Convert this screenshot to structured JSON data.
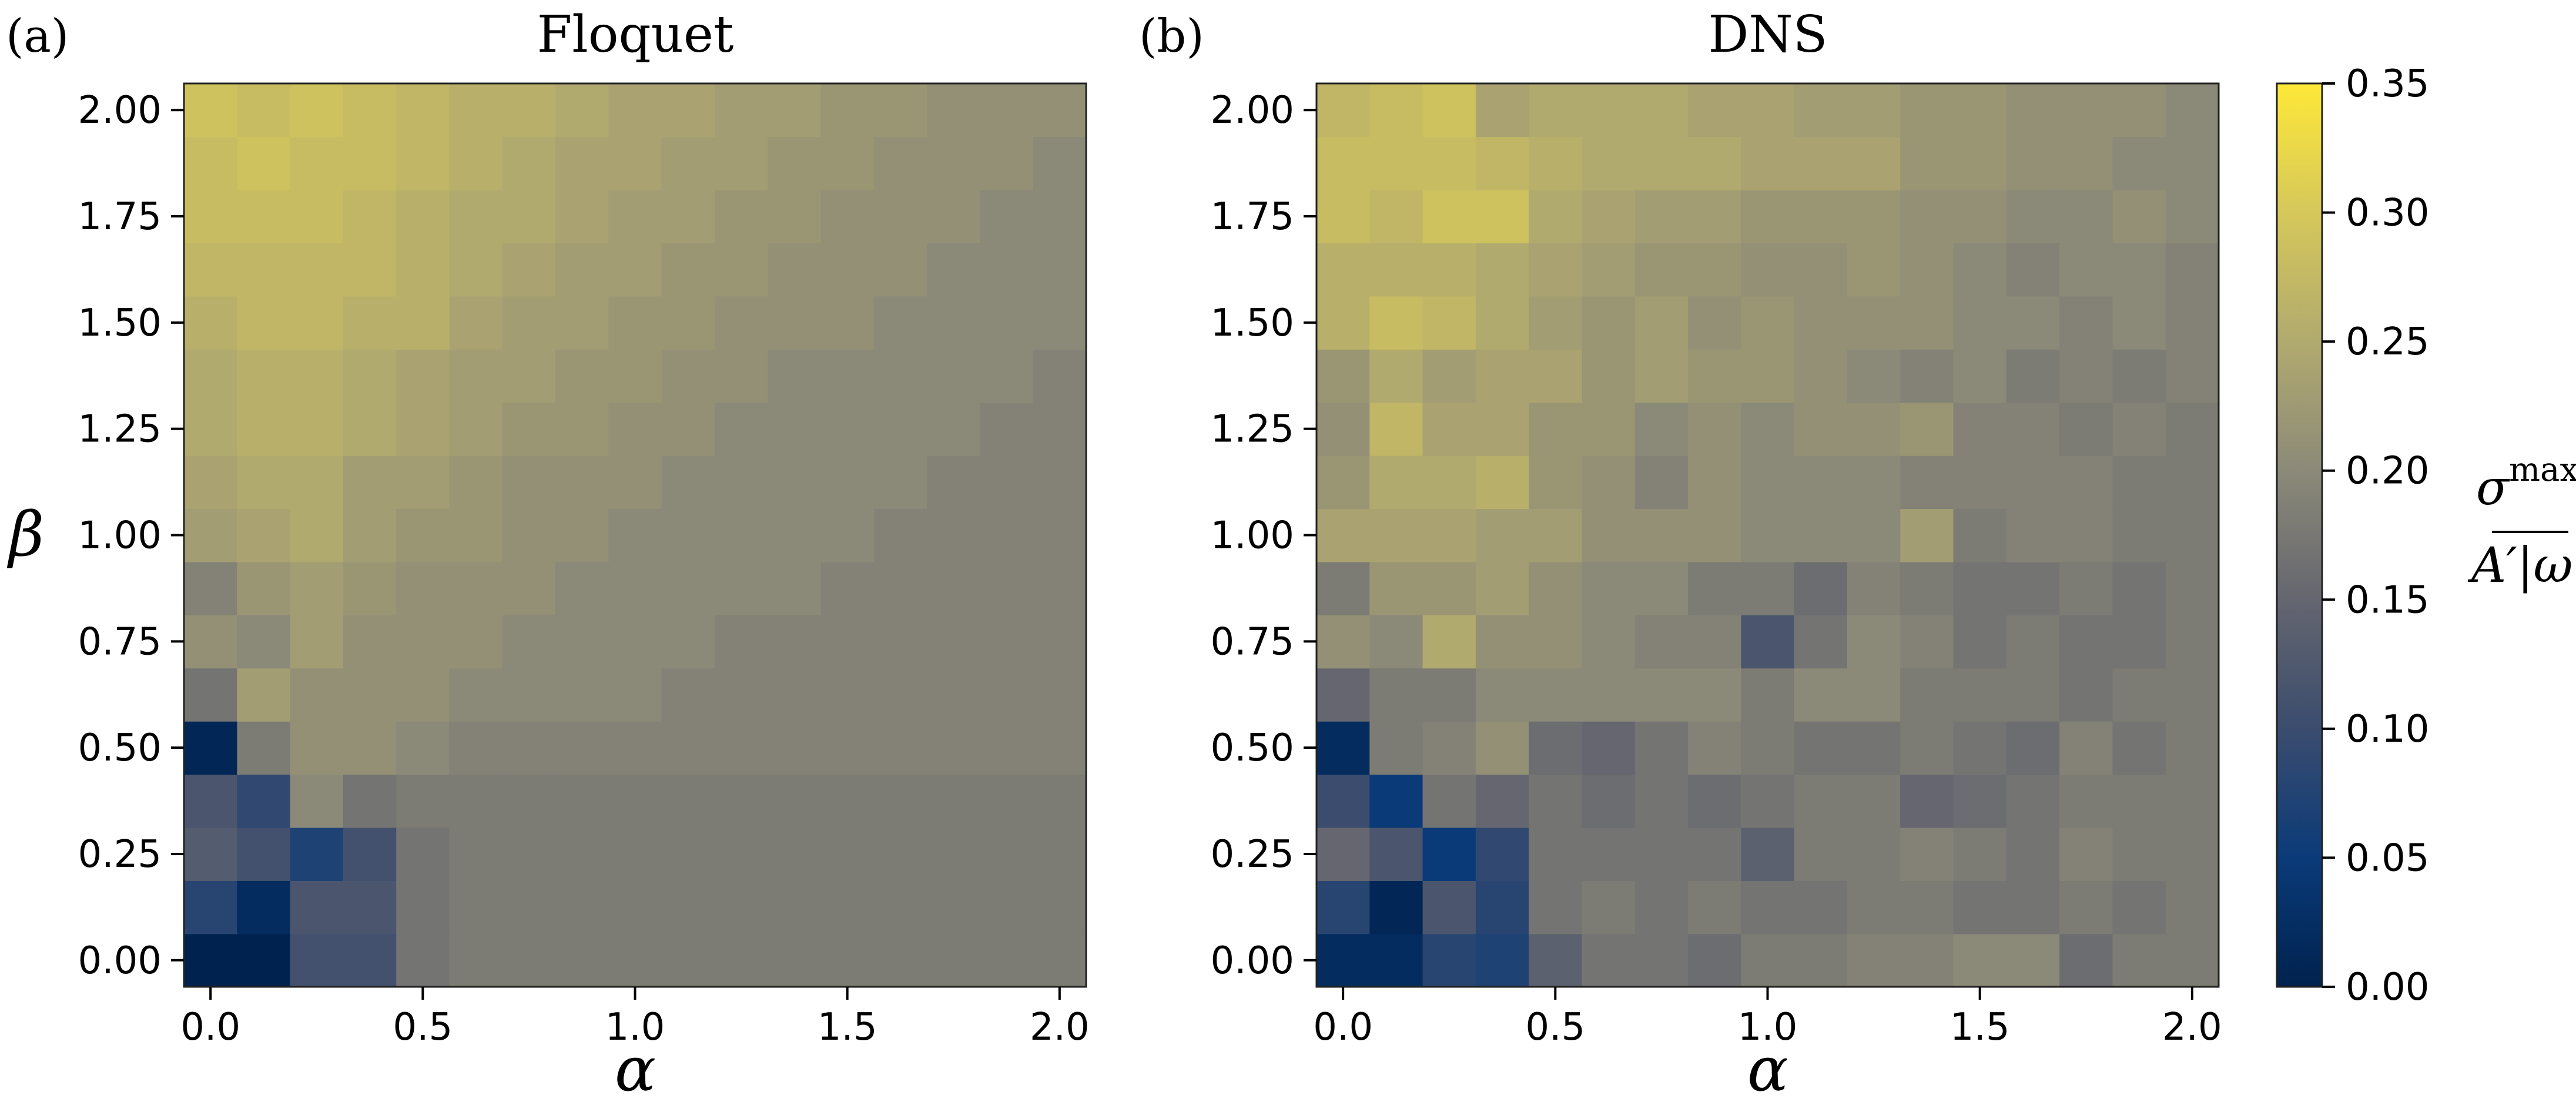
{
  "colors": {
    "low": "#00224e",
    "mid": "#7c7b78",
    "high": "#fee838"
  },
  "chart_data": [
    {
      "type": "heatmap",
      "panel_label": "(a)",
      "title": "Floquet",
      "xlabel": "α",
      "ylabel": "β",
      "x": [
        0.0,
        0.125,
        0.25,
        0.375,
        0.5,
        0.625,
        0.75,
        0.875,
        1.0,
        1.125,
        1.25,
        1.375,
        1.5,
        1.625,
        1.75,
        1.875,
        2.0
      ],
      "y": [
        0.0,
        0.125,
        0.25,
        0.375,
        0.5,
        0.625,
        0.75,
        0.875,
        1.0,
        1.125,
        1.25,
        1.375,
        1.5,
        1.625,
        1.75,
        1.875,
        2.0
      ],
      "xticks": [
        "0.0",
        "0.5",
        "1.0",
        "1.5",
        "2.0"
      ],
      "yticks": [
        "0.00",
        "0.25",
        "0.50",
        "0.75",
        "1.00",
        "1.25",
        "1.50",
        "1.75",
        "2.00"
      ],
      "values": [
        [
          0.0,
          0.0,
          0.11,
          0.11,
          0.17,
          0.18,
          0.18,
          0.18,
          0.18,
          0.18,
          0.18,
          0.18,
          0.18,
          0.18,
          0.18,
          0.18,
          0.18
        ],
        [
          0.08,
          0.02,
          0.12,
          0.12,
          0.17,
          0.18,
          0.18,
          0.18,
          0.18,
          0.18,
          0.18,
          0.18,
          0.18,
          0.18,
          0.18,
          0.18,
          0.18
        ],
        [
          0.13,
          0.11,
          0.07,
          0.11,
          0.17,
          0.18,
          0.18,
          0.18,
          0.18,
          0.18,
          0.18,
          0.18,
          0.18,
          0.18,
          0.18,
          0.18,
          0.18
        ],
        [
          0.12,
          0.09,
          0.2,
          0.17,
          0.18,
          0.18,
          0.18,
          0.18,
          0.18,
          0.18,
          0.18,
          0.18,
          0.18,
          0.18,
          0.18,
          0.18,
          0.18
        ],
        [
          0.01,
          0.18,
          0.21,
          0.21,
          0.2,
          0.19,
          0.19,
          0.19,
          0.19,
          0.19,
          0.19,
          0.19,
          0.19,
          0.19,
          0.19,
          0.19,
          0.19
        ],
        [
          0.17,
          0.23,
          0.21,
          0.21,
          0.21,
          0.2,
          0.2,
          0.2,
          0.2,
          0.19,
          0.19,
          0.19,
          0.19,
          0.19,
          0.19,
          0.19,
          0.19
        ],
        [
          0.21,
          0.2,
          0.23,
          0.21,
          0.21,
          0.21,
          0.2,
          0.2,
          0.2,
          0.2,
          0.19,
          0.19,
          0.19,
          0.19,
          0.19,
          0.19,
          0.19
        ],
        [
          0.19,
          0.22,
          0.23,
          0.22,
          0.21,
          0.21,
          0.21,
          0.2,
          0.2,
          0.2,
          0.2,
          0.2,
          0.19,
          0.19,
          0.19,
          0.19,
          0.19
        ],
        [
          0.23,
          0.24,
          0.25,
          0.23,
          0.22,
          0.22,
          0.21,
          0.21,
          0.2,
          0.2,
          0.2,
          0.2,
          0.2,
          0.19,
          0.19,
          0.19,
          0.19
        ],
        [
          0.24,
          0.25,
          0.25,
          0.23,
          0.23,
          0.22,
          0.21,
          0.21,
          0.21,
          0.2,
          0.2,
          0.2,
          0.2,
          0.2,
          0.19,
          0.19,
          0.19
        ],
        [
          0.25,
          0.26,
          0.26,
          0.25,
          0.24,
          0.23,
          0.22,
          0.22,
          0.21,
          0.21,
          0.2,
          0.2,
          0.2,
          0.2,
          0.2,
          0.19,
          0.19
        ],
        [
          0.25,
          0.26,
          0.26,
          0.25,
          0.24,
          0.23,
          0.23,
          0.22,
          0.22,
          0.21,
          0.21,
          0.2,
          0.2,
          0.2,
          0.2,
          0.2,
          0.19
        ],
        [
          0.26,
          0.27,
          0.27,
          0.26,
          0.26,
          0.24,
          0.23,
          0.23,
          0.22,
          0.22,
          0.21,
          0.21,
          0.21,
          0.2,
          0.2,
          0.2,
          0.2
        ],
        [
          0.27,
          0.27,
          0.27,
          0.27,
          0.26,
          0.25,
          0.24,
          0.23,
          0.23,
          0.22,
          0.22,
          0.21,
          0.21,
          0.21,
          0.2,
          0.2,
          0.2
        ],
        [
          0.28,
          0.28,
          0.28,
          0.27,
          0.26,
          0.25,
          0.25,
          0.24,
          0.23,
          0.23,
          0.22,
          0.22,
          0.21,
          0.21,
          0.21,
          0.2,
          0.2
        ],
        [
          0.28,
          0.29,
          0.28,
          0.28,
          0.27,
          0.26,
          0.25,
          0.24,
          0.24,
          0.23,
          0.23,
          0.22,
          0.22,
          0.21,
          0.21,
          0.21,
          0.2
        ],
        [
          0.29,
          0.28,
          0.29,
          0.28,
          0.27,
          0.26,
          0.26,
          0.25,
          0.24,
          0.24,
          0.23,
          0.23,
          0.22,
          0.22,
          0.21,
          0.21,
          0.21
        ]
      ]
    },
    {
      "type": "heatmap",
      "panel_label": "(b)",
      "title": "DNS",
      "xlabel": "α",
      "ylabel": "",
      "x": [
        0.0,
        0.125,
        0.25,
        0.375,
        0.5,
        0.625,
        0.75,
        0.875,
        1.0,
        1.125,
        1.25,
        1.375,
        1.5,
        1.625,
        1.75,
        1.875,
        2.0
      ],
      "y": [
        0.0,
        0.125,
        0.25,
        0.375,
        0.5,
        0.625,
        0.75,
        0.875,
        1.0,
        1.125,
        1.25,
        1.375,
        1.5,
        1.625,
        1.75,
        1.875,
        2.0
      ],
      "xticks": [
        "0.0",
        "0.5",
        "1.0",
        "1.5",
        "2.0"
      ],
      "yticks": [
        "0.00",
        "0.25",
        "0.50",
        "0.75",
        "1.00",
        "1.25",
        "1.50",
        "1.75",
        "2.00"
      ],
      "values": [
        [
          0.02,
          0.02,
          0.08,
          0.07,
          0.14,
          0.17,
          0.17,
          0.16,
          0.18,
          0.18,
          0.19,
          0.19,
          0.2,
          0.2,
          0.16,
          0.18,
          0.18
        ],
        [
          0.08,
          0.01,
          0.12,
          0.08,
          0.17,
          0.18,
          0.17,
          0.18,
          0.17,
          0.17,
          0.18,
          0.18,
          0.17,
          0.17,
          0.18,
          0.17,
          0.18
        ],
        [
          0.15,
          0.12,
          0.05,
          0.09,
          0.17,
          0.17,
          0.17,
          0.17,
          0.14,
          0.18,
          0.18,
          0.19,
          0.18,
          0.17,
          0.19,
          0.18,
          0.18
        ],
        [
          0.1,
          0.05,
          0.17,
          0.15,
          0.17,
          0.16,
          0.17,
          0.16,
          0.17,
          0.18,
          0.18,
          0.15,
          0.16,
          0.17,
          0.18,
          0.18,
          0.18
        ],
        [
          0.02,
          0.18,
          0.19,
          0.21,
          0.16,
          0.15,
          0.17,
          0.19,
          0.18,
          0.17,
          0.17,
          0.18,
          0.17,
          0.16,
          0.19,
          0.17,
          0.18
        ],
        [
          0.15,
          0.18,
          0.18,
          0.2,
          0.2,
          0.2,
          0.2,
          0.2,
          0.18,
          0.2,
          0.2,
          0.18,
          0.18,
          0.18,
          0.17,
          0.18,
          0.18
        ],
        [
          0.21,
          0.2,
          0.25,
          0.21,
          0.21,
          0.2,
          0.19,
          0.19,
          0.12,
          0.17,
          0.2,
          0.19,
          0.17,
          0.18,
          0.17,
          0.17,
          0.18
        ],
        [
          0.18,
          0.22,
          0.22,
          0.23,
          0.21,
          0.2,
          0.2,
          0.18,
          0.18,
          0.16,
          0.19,
          0.18,
          0.17,
          0.17,
          0.18,
          0.17,
          0.18
        ],
        [
          0.24,
          0.24,
          0.24,
          0.23,
          0.23,
          0.21,
          0.21,
          0.21,
          0.2,
          0.2,
          0.2,
          0.23,
          0.18,
          0.19,
          0.19,
          0.18,
          0.18
        ],
        [
          0.22,
          0.25,
          0.25,
          0.26,
          0.22,
          0.21,
          0.19,
          0.21,
          0.2,
          0.2,
          0.2,
          0.19,
          0.19,
          0.19,
          0.19,
          0.18,
          0.18
        ],
        [
          0.21,
          0.27,
          0.24,
          0.24,
          0.22,
          0.22,
          0.2,
          0.21,
          0.2,
          0.21,
          0.21,
          0.22,
          0.19,
          0.19,
          0.18,
          0.19,
          0.18
        ],
        [
          0.22,
          0.25,
          0.23,
          0.24,
          0.24,
          0.22,
          0.23,
          0.22,
          0.22,
          0.21,
          0.2,
          0.19,
          0.2,
          0.18,
          0.19,
          0.18,
          0.19
        ],
        [
          0.26,
          0.28,
          0.27,
          0.25,
          0.23,
          0.22,
          0.23,
          0.21,
          0.22,
          0.21,
          0.21,
          0.21,
          0.2,
          0.2,
          0.19,
          0.2,
          0.19
        ],
        [
          0.26,
          0.26,
          0.26,
          0.25,
          0.24,
          0.23,
          0.22,
          0.22,
          0.21,
          0.21,
          0.22,
          0.21,
          0.2,
          0.19,
          0.2,
          0.2,
          0.19
        ],
        [
          0.28,
          0.27,
          0.29,
          0.29,
          0.25,
          0.24,
          0.23,
          0.23,
          0.22,
          0.22,
          0.22,
          0.21,
          0.21,
          0.2,
          0.2,
          0.21,
          0.2
        ],
        [
          0.28,
          0.28,
          0.28,
          0.27,
          0.26,
          0.25,
          0.25,
          0.25,
          0.24,
          0.24,
          0.24,
          0.22,
          0.22,
          0.21,
          0.21,
          0.2,
          0.2
        ],
        [
          0.27,
          0.28,
          0.29,
          0.24,
          0.25,
          0.25,
          0.25,
          0.24,
          0.24,
          0.23,
          0.23,
          0.22,
          0.22,
          0.21,
          0.21,
          0.21,
          0.2
        ]
      ]
    }
  ],
  "colorbar": {
    "label_main": "σ",
    "label_sup": "max",
    "label_denominator": "A′|ω|",
    "vmin": 0.0,
    "vmax": 0.35,
    "ticks": [
      "0.00",
      "0.05",
      "0.10",
      "0.15",
      "0.20",
      "0.25",
      "0.30",
      "0.35"
    ]
  }
}
